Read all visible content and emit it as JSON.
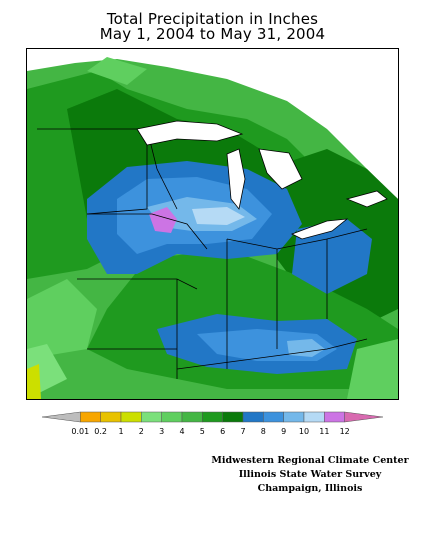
{
  "title": {
    "line1": "Total Precipitation in Inches",
    "line2": "May 1, 2004 to May 31, 2004"
  },
  "legend": {
    "labels": [
      "0.01",
      "0.2",
      "1",
      "2",
      "3",
      "4",
      "5",
      "6",
      "7",
      "8",
      "9",
      "10",
      "11",
      "12"
    ],
    "colors": [
      "#bdbdbd",
      "#f7a600",
      "#e8c200",
      "#ccdf00",
      "#7be07b",
      "#5fcf5f",
      "#44b644",
      "#1f9a1f",
      "#0b7a0b",
      "#2277c6",
      "#3d92dd",
      "#74b8ea",
      "#b5daf5",
      "#cc74e4",
      "#d86ab0"
    ]
  },
  "credits": {
    "line1": "Midwestern Regional Climate Center",
    "line2": "Illinois State Water Survey",
    "line3": "Champaign, Illinois"
  }
}
